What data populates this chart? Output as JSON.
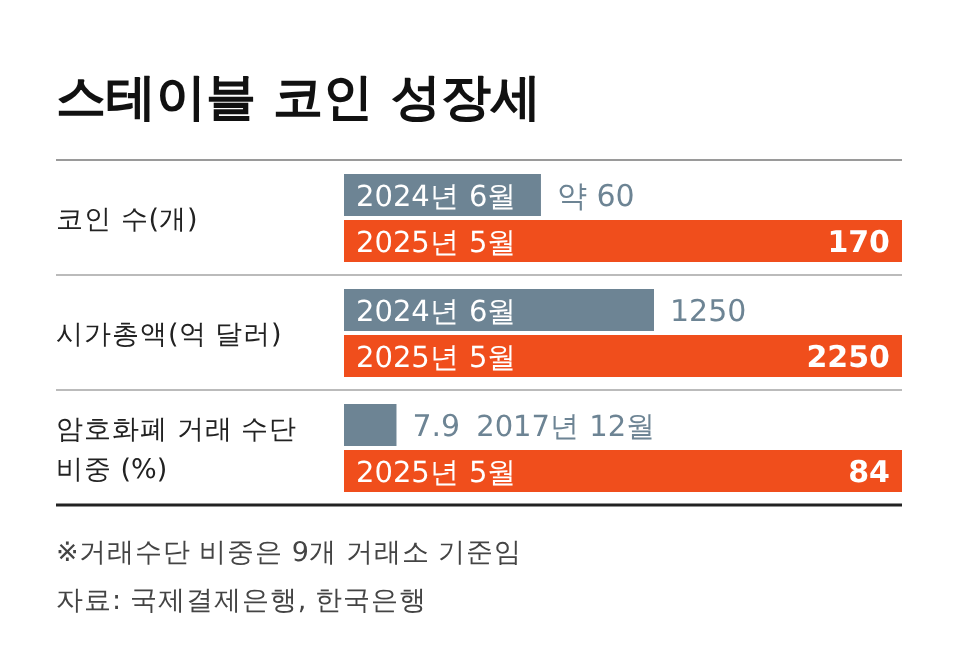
{
  "chart_data": [
    {
      "type": "bar",
      "orientation": "horizontal",
      "title": "스테이블 코인 성장세",
      "ylabel": "코인 수(개)",
      "categories": [
        "2024년 6월",
        "2025년 5월"
      ],
      "values": [
        60,
        170
      ],
      "colors": [
        "#6d8494",
        "#f04e1c"
      ],
      "value_labels": [
        "약 60",
        "170"
      ]
    },
    {
      "type": "bar",
      "orientation": "horizontal",
      "ylabel": "시가총액(억 달러)",
      "categories": [
        "2024년 6월",
        "2025년 5월"
      ],
      "values": [
        1250,
        2250
      ],
      "colors": [
        "#6d8494",
        "#f04e1c"
      ],
      "value_labels": [
        "1250",
        "2250"
      ]
    },
    {
      "type": "bar",
      "orientation": "horizontal",
      "ylabel": "암호화폐 거래 수단 비중 (%)",
      "categories": [
        "2017년 12월",
        "2025년 5월"
      ],
      "values": [
        7.9,
        84
      ],
      "colors": [
        "#6d8494",
        "#f04e1c"
      ],
      "value_labels": [
        "7.9",
        "84"
      ],
      "annotations": [
        "※거래수단 비중은 9개 거래소 기준임",
        "자료: 국제결제은행, 한국은행"
      ]
    }
  ]
}
